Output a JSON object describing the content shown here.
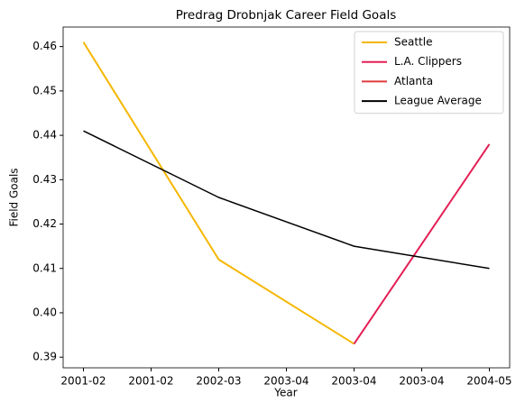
{
  "chart_data": {
    "type": "line",
    "title": "Predrag Drobnjak Career Field Goals",
    "xlabel": "Year",
    "ylabel": "Field Goals",
    "series": [
      {
        "name": "Seattle",
        "color": "#f5b700",
        "x": [
          0,
          1,
          2
        ],
        "values": [
          0.461,
          0.412,
          0.393
        ]
      },
      {
        "name": "L.A. Clippers",
        "color": "#e31e54",
        "x": [
          2,
          3
        ],
        "values": [
          0.393,
          0.438
        ]
      },
      {
        "name": "Atlanta",
        "color": "#e03a3e",
        "x": [
          2
        ],
        "values": [
          0.393
        ]
      },
      {
        "name": "League Average",
        "color": "#000000",
        "x": [
          0,
          1,
          2,
          3
        ],
        "values": [
          0.441,
          0.426,
          0.415,
          0.41
        ]
      }
    ],
    "xlim": [
      -0.15,
      3.15
    ],
    "xticks": [
      {
        "value": 0,
        "label": "2001-02"
      },
      {
        "value": 0.5,
        "label": "2001-02"
      },
      {
        "value": 1,
        "label": "2002-03"
      },
      {
        "value": 1.5,
        "label": "2003-04"
      },
      {
        "value": 2,
        "label": "2003-04"
      },
      {
        "value": 2.5,
        "label": "2003-04"
      },
      {
        "value": 3,
        "label": "2004-05"
      }
    ],
    "ylim": [
      0.3876,
      0.4644
    ],
    "yticks": [
      0.39,
      {
        "value": 0.4,
        "label": "0.40"
      },
      0.41,
      0.42,
      0.43,
      0.44,
      0.45,
      0.46
    ],
    "legend": "upper right",
    "grid": false
  }
}
